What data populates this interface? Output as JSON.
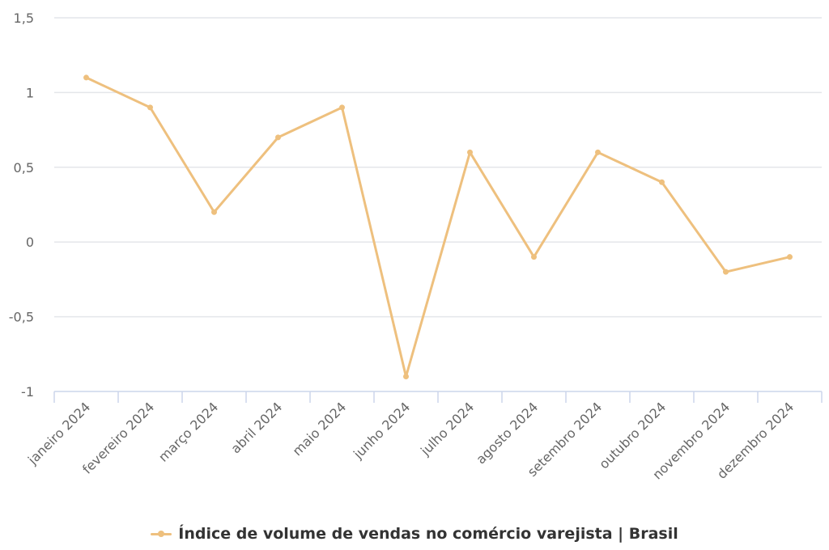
{
  "chart_data": {
    "type": "line",
    "title": "",
    "xlabel": "",
    "ylabel": "",
    "categories": [
      "janeiro 2024",
      "fevereiro 2024",
      "março 2024",
      "abril 2024",
      "maio 2024",
      "junho 2024",
      "julho 2024",
      "agosto 2024",
      "setembro 2024",
      "outubro 2024",
      "novembro 2024",
      "dezembro 2024"
    ],
    "series": [
      {
        "name": "Índice de volume de vendas no comércio varejista | Brasil",
        "color": "#eec07e",
        "values": [
          1.1,
          0.9,
          0.2,
          0.7,
          0.9,
          -0.9,
          0.6,
          -0.1,
          0.6,
          0.4,
          -0.2,
          -0.1
        ]
      }
    ],
    "ylim": [
      -1,
      1.5
    ],
    "yticks": [
      1.5,
      1,
      0.5,
      0,
      -0.5,
      -1
    ],
    "ytick_labels": [
      "1,5",
      "1",
      "0,5",
      "0",
      "-0,5",
      "-1"
    ],
    "grid": true,
    "legend_position": "bottom-center"
  },
  "legend": {
    "label": "Índice de volume de vendas no comércio varejista | Brasil",
    "color": "#eec07e"
  }
}
